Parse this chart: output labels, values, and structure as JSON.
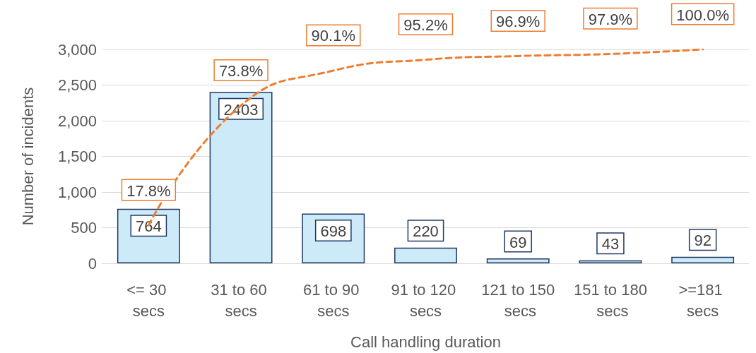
{
  "chart_data": {
    "type": "bar",
    "xlabel": "Call handling duration",
    "ylabel": "Number of incidents",
    "categories": [
      "<= 30 secs",
      "31 to 60 secs",
      "61 to 90 secs",
      "91 to 120 secs",
      "121 to 150 secs",
      "151 to 180 secs",
      ">=181 secs"
    ],
    "series": [
      {
        "color": "#cdeaf8",
        "values": [
          764,
          2403,
          698,
          220,
          69,
          43,
          92
        ],
        "value_labels": [
          "764",
          "2403",
          "698",
          "220",
          "69",
          "43",
          "92"
        ]
      },
      {
        "type": "line",
        "axis": "y2",
        "color": "#ed7d31",
        "line_style": "dashed",
        "marker": "none",
        "values": [
          17.8,
          73.8,
          90.1,
          95.2,
          96.9,
          97.9,
          100.0
        ],
        "value_labels": [
          "17.8%",
          "73.8%",
          "90.1%",
          "95.2%",
          "96.9%",
          "97.9%",
          "100.0%"
        ]
      }
    ],
    "ylim": [
      0,
      3000
    ],
    "yticks": [
      {
        "value": 0,
        "label": "0"
      },
      {
        "value": 500,
        "label": "500"
      },
      {
        "value": 1000,
        "label": "1,000"
      },
      {
        "value": 1500,
        "label": "1,500"
      },
      {
        "value": 2000,
        "label": "2,000"
      },
      {
        "value": 2500,
        "label": "2,500"
      },
      {
        "value": 3000,
        "label": "3,000"
      }
    ],
    "grid": "y"
  }
}
